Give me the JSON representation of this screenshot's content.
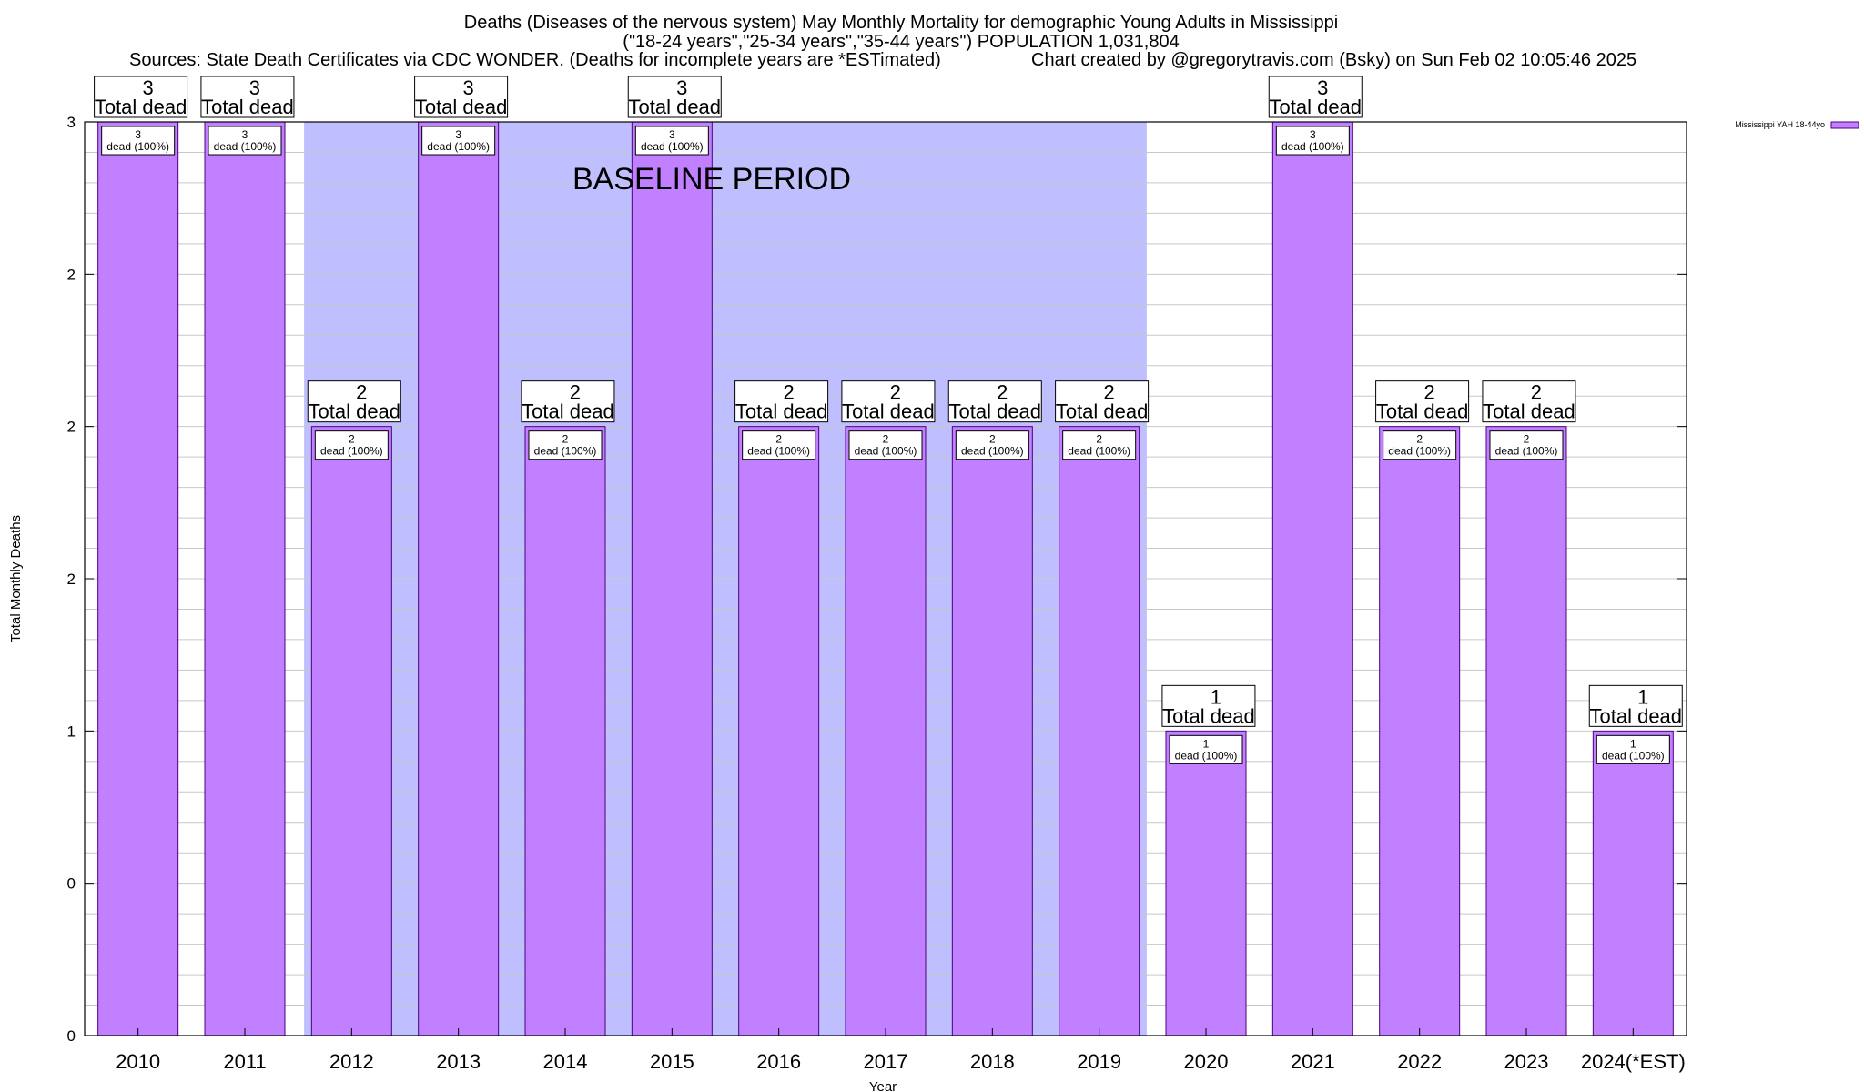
{
  "chart_data": {
    "type": "bar",
    "title_lines": [
      "Deaths (Diseases of the nervous system) May Monthly Mortality for demographic Young Adults in Mississippi",
      "(\"18-24 years\",\"25-34 years\",\"35-44 years\") POPULATION 1,031,804"
    ],
    "sources": "Sources: State Death Certificates via CDC WONDER. (Deaths for incomplete years are *ESTimated)",
    "credit": "Chart created by @gregorytravis.com (Bsky) on Sun Feb 02 10:05:46 2025",
    "xlabel": "Year",
    "ylabel": "Total Monthly Deaths",
    "categories": [
      "2010",
      "2011",
      "2012",
      "2013",
      "2014",
      "2015",
      "2016",
      "2017",
      "2018",
      "2019",
      "2020",
      "2021",
      "2022",
      "2023",
      "2024(*EST)"
    ],
    "values": [
      3,
      3,
      2,
      3,
      2,
      3,
      2,
      2,
      2,
      2,
      1,
      3,
      2,
      2,
      1
    ],
    "series": [
      {
        "name": "Mississippi YAH 18-44yo",
        "values": [
          3,
          3,
          2,
          3,
          2,
          3,
          2,
          2,
          2,
          2,
          1,
          3,
          2,
          2,
          1
        ]
      }
    ],
    "total_label_word": "Total dead",
    "bar_label_suffix": "dead (100%)",
    "ylim": [
      0,
      3
    ],
    "y_tick_labels": [
      "0",
      "0",
      "1",
      "2",
      "2",
      "2",
      "3"
    ],
    "y_tick_values": [
      0,
      0.5,
      1,
      1.5,
      2,
      2.5,
      3
    ],
    "baseline_period": {
      "label": "BASELINE PERIOD",
      "start": "2012",
      "end": "2019"
    },
    "grid": true,
    "legend_position": "top-right",
    "colors": {
      "bar": "#c080ff",
      "bar_stroke": "#4b0082",
      "baseline": "#bfbfff",
      "grid": "#c8c8c8"
    }
  }
}
